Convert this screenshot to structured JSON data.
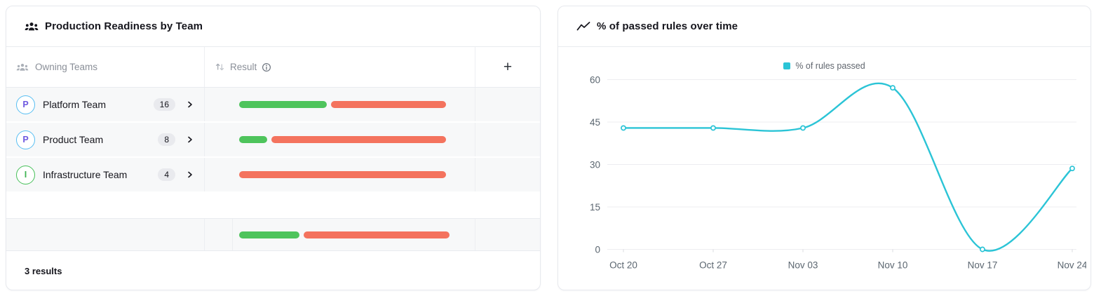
{
  "left_card": {
    "title": "Production Readiness by Team",
    "table": {
      "columns": {
        "teams": "Owning Teams",
        "result": "Result",
        "add_button": "+"
      },
      "rows": [
        {
          "initial": "P",
          "name": "Platform Team",
          "count": "16",
          "avatar_border": "#57bef2",
          "avatar_letter": "#6e59e0",
          "pass_pct": 42.5,
          "fail_pct": 57.5
        },
        {
          "initial": "P",
          "name": "Product Team",
          "count": "8",
          "avatar_border": "#57bef2",
          "avatar_letter": "#6e59e0",
          "pass_pct": 13.5,
          "fail_pct": 86.5
        },
        {
          "initial": "I",
          "name": "Infrastructure Team",
          "count": "4",
          "avatar_border": "#46c059",
          "avatar_letter": "#3fb454",
          "pass_pct": 0,
          "fail_pct": 100
        }
      ],
      "summary_bar": {
        "pass_pct": 28.5,
        "fail_pct": 71.5
      }
    },
    "footer": "3 results",
    "colors": {
      "pass": "#4ec45c",
      "fail": "#f4735e"
    }
  },
  "right_card": {
    "title": "% of passed rules over time"
  },
  "chart_data": {
    "type": "line",
    "title": "% of passed rules over time",
    "x": [
      "Oct 20",
      "Oct 27",
      "Nov 03",
      "Nov 10",
      "Nov 17",
      "Nov 24"
    ],
    "series": [
      {
        "name": "% of rules passed",
        "values": [
          42.9,
          42.9,
          42.9,
          57.1,
          0,
          28.6
        ]
      }
    ],
    "ylim": [
      0,
      60
    ],
    "yticks": [
      0,
      15,
      30,
      45,
      60
    ],
    "xlabel": "",
    "ylabel": "",
    "legend_position": "top-center",
    "grid": "horizontal",
    "line_color": "#2bc4d6",
    "marker": "hollow-circle"
  }
}
